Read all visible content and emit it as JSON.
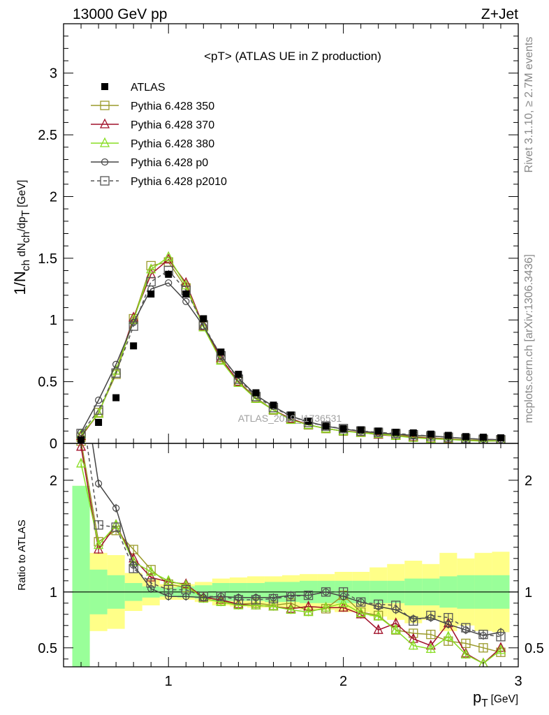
{
  "header": {
    "left": "13000 GeV pp",
    "right": "Z+Jet"
  },
  "side_labels": {
    "top": "Rivet 3.1.10, ≥ 2.7M events",
    "bottom": "mcplots.cern.ch [arXiv:1306.3436]"
  },
  "watermark": "ATLAS_2019_I1736531",
  "chart_data": [
    {
      "type": "line",
      "title": "<pT> (ATLAS UE in Z production)",
      "ylabel": "1/N_ch dN_ch/dp_T [GeV]",
      "xlim": [
        0.4,
        3.0
      ],
      "ylim": [
        0,
        3.4
      ],
      "yticks": [
        0,
        0.5,
        1,
        1.5,
        2,
        2.5,
        3
      ],
      "x": [
        0.5,
        0.6,
        0.7,
        0.8,
        0.9,
        1.0,
        1.1,
        1.2,
        1.3,
        1.4,
        1.5,
        1.6,
        1.7,
        1.8,
        1.9,
        2.0,
        2.1,
        2.2,
        2.3,
        2.4,
        2.5,
        2.6,
        2.7,
        2.8,
        2.9
      ],
      "legend": [
        "ATLAS",
        "Pythia 6.428 350",
        "Pythia 6.428 370",
        "Pythia 6.428 380",
        "Pythia 6.428 p0",
        "Pythia 6.428 p2010"
      ],
      "series": [
        {
          "name": "ATLAS",
          "color": "#000000",
          "marker": "filled-square",
          "values": [
            0.03,
            0.17,
            0.37,
            0.79,
            1.21,
            1.37,
            1.21,
            1.01,
            0.74,
            0.56,
            0.41,
            0.31,
            0.23,
            0.18,
            0.14,
            0.12,
            0.11,
            0.1,
            0.09,
            0.085,
            0.075,
            0.065,
            0.055,
            0.05,
            0.045
          ]
        },
        {
          "name": "Pythia 6.428 350",
          "color": "#9a9a2a",
          "marker": "open-square",
          "values": [
            0.05,
            0.25,
            0.56,
            1.01,
            1.44,
            1.47,
            1.26,
            0.95,
            0.68,
            0.5,
            0.37,
            0.27,
            0.2,
            0.15,
            0.12,
            0.1,
            0.09,
            0.08,
            0.07,
            0.055,
            0.045,
            0.037,
            0.03,
            0.024,
            0.021
          ]
        },
        {
          "name": "Pythia 6.428 370",
          "color": "#a0102a",
          "marker": "open-triangle",
          "values": [
            0.06,
            0.24,
            0.59,
            1.02,
            1.37,
            1.49,
            1.3,
            0.95,
            0.69,
            0.5,
            0.36,
            0.27,
            0.2,
            0.15,
            0.12,
            0.1,
            0.09,
            0.07,
            0.06,
            0.05,
            0.04,
            0.035,
            0.025,
            0.02,
            0.02
          ]
        },
        {
          "name": "Pythia 6.428 380",
          "color": "#88dd22",
          "marker": "open-triangle",
          "values": [
            0.07,
            0.24,
            0.59,
            1.0,
            1.41,
            1.51,
            1.28,
            0.94,
            0.67,
            0.49,
            0.36,
            0.27,
            0.19,
            0.15,
            0.12,
            0.1,
            0.085,
            0.075,
            0.06,
            0.045,
            0.037,
            0.032,
            0.024,
            0.018,
            0.022
          ]
        },
        {
          "name": "Pythia 6.428 p0",
          "color": "#444444",
          "marker": "open-circle",
          "values": [
            0.09,
            0.35,
            0.64,
            0.98,
            1.25,
            1.3,
            1.15,
            0.95,
            0.71,
            0.53,
            0.39,
            0.3,
            0.22,
            0.175,
            0.14,
            0.115,
            0.1,
            0.085,
            0.075,
            0.065,
            0.06,
            0.05,
            0.04,
            0.033,
            0.03
          ]
        },
        {
          "name": "Pythia 6.428 p2010",
          "color": "#555555",
          "marker": "open-square-dashed",
          "values": [
            0.08,
            0.27,
            0.57,
            0.95,
            1.31,
            1.4,
            1.24,
            0.96,
            0.71,
            0.52,
            0.38,
            0.29,
            0.22,
            0.17,
            0.14,
            0.12,
            0.1,
            0.09,
            0.08,
            0.07,
            0.06,
            0.05,
            0.04,
            0.033,
            0.03
          ]
        }
      ]
    },
    {
      "type": "line",
      "ylabel": "Ratio to ATLAS",
      "xlabel": "p_T [GeV]",
      "xlim": [
        0.4,
        3.0
      ],
      "ylim": [
        0.33,
        2.33
      ],
      "yticks": [
        0.5,
        1,
        2
      ],
      "xticks": [
        1,
        2,
        3
      ],
      "reference": 1.0,
      "x": [
        0.5,
        0.6,
        0.7,
        0.8,
        0.9,
        1.0,
        1.1,
        1.2,
        1.3,
        1.4,
        1.5,
        1.6,
        1.7,
        1.8,
        1.9,
        2.0,
        2.1,
        2.2,
        2.3,
        2.4,
        2.5,
        2.6,
        2.7,
        2.8,
        2.9
      ],
      "uncertainty_band": {
        "stat_color": "#99ff99",
        "total_color": "#ffff88",
        "stat_half_width": [
          0.95,
          0.2,
          0.15,
          0.08,
          0.05,
          0.04,
          0.05,
          0.06,
          0.08,
          0.08,
          0.08,
          0.09,
          0.09,
          0.1,
          0.1,
          0.1,
          0.1,
          0.1,
          0.1,
          0.12,
          0.12,
          0.14,
          0.15,
          0.15,
          0.15
        ],
        "total_half_width": [
          0.95,
          0.35,
          0.33,
          0.17,
          0.12,
          0.07,
          0.07,
          0.09,
          0.12,
          0.13,
          0.14,
          0.14,
          0.15,
          0.16,
          0.16,
          0.18,
          0.18,
          0.22,
          0.25,
          0.28,
          0.25,
          0.35,
          0.3,
          0.35,
          0.36
        ]
      },
      "series": [
        {
          "name": "Pythia 6.428 350",
          "values": [
            2.35,
            1.45,
            1.55,
            1.38,
            1.2,
            1.07,
            1.04,
            0.96,
            0.92,
            0.89,
            0.9,
            0.88,
            0.9,
            0.83,
            0.85,
            0.97,
            0.82,
            0.79,
            0.66,
            0.63,
            0.62,
            0.56,
            0.54,
            0.5,
            0.46
          ]
        },
        {
          "name": "Pythia 6.428 370",
          "values": [
            2.3,
            1.38,
            1.6,
            1.3,
            1.13,
            1.09,
            1.07,
            0.95,
            0.93,
            0.89,
            0.88,
            0.87,
            0.85,
            0.87,
            0.86,
            0.86,
            0.8,
            0.66,
            0.72,
            0.58,
            0.52,
            0.72,
            0.45,
            0.36,
            0.5
          ]
        },
        {
          "name": "Pythia 6.428 380",
          "values": [
            2.15,
            1.42,
            1.6,
            1.27,
            1.18,
            1.1,
            1.06,
            0.94,
            0.91,
            0.88,
            0.88,
            0.87,
            0.84,
            0.82,
            0.86,
            0.9,
            0.81,
            0.78,
            0.66,
            0.52,
            0.49,
            0.6,
            0.44,
            0.36,
            0.48
          ]
        },
        {
          "name": "Pythia 6.428 p0",
          "values": [
            3.0,
            1.97,
            1.75,
            1.24,
            1.03,
            0.96,
            0.96,
            0.95,
            0.96,
            0.95,
            0.95,
            0.95,
            0.97,
            0.97,
            1.0,
            0.96,
            0.91,
            0.87,
            0.84,
            0.76,
            0.77,
            0.71,
            0.66,
            0.61,
            0.64
          ]
        },
        {
          "name": "Pythia 6.428 p2010",
          "values": [
            2.7,
            1.6,
            1.58,
            1.21,
            1.08,
            1.02,
            1.02,
            0.96,
            0.96,
            0.93,
            0.93,
            0.94,
            0.96,
            0.97,
            1.0,
            1.0,
            0.91,
            0.89,
            0.88,
            0.74,
            0.79,
            0.77,
            0.68,
            0.62,
            0.6
          ]
        }
      ]
    }
  ]
}
